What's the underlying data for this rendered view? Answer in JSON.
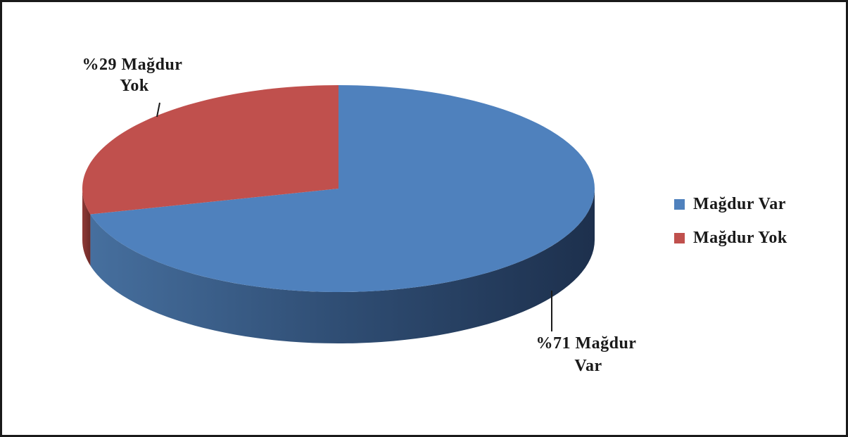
{
  "chart_data": {
    "type": "pie",
    "style": "3d",
    "categories": [
      "Mağdur Var",
      "Mağdur Yok"
    ],
    "values": [
      71,
      29
    ],
    "colors": [
      "#4f81bd",
      "#c0504d"
    ],
    "data_labels": [
      [
        "%71 Mağdur",
        "Var"
      ],
      [
        "%29 Mağdur",
        "Yok"
      ]
    ],
    "legend": {
      "placement": "right",
      "items": [
        {
          "label": "Mağdur Var",
          "color": "#4f81bd"
        },
        {
          "label": "Mağdur Yok",
          "color": "#c0504d"
        }
      ]
    }
  }
}
